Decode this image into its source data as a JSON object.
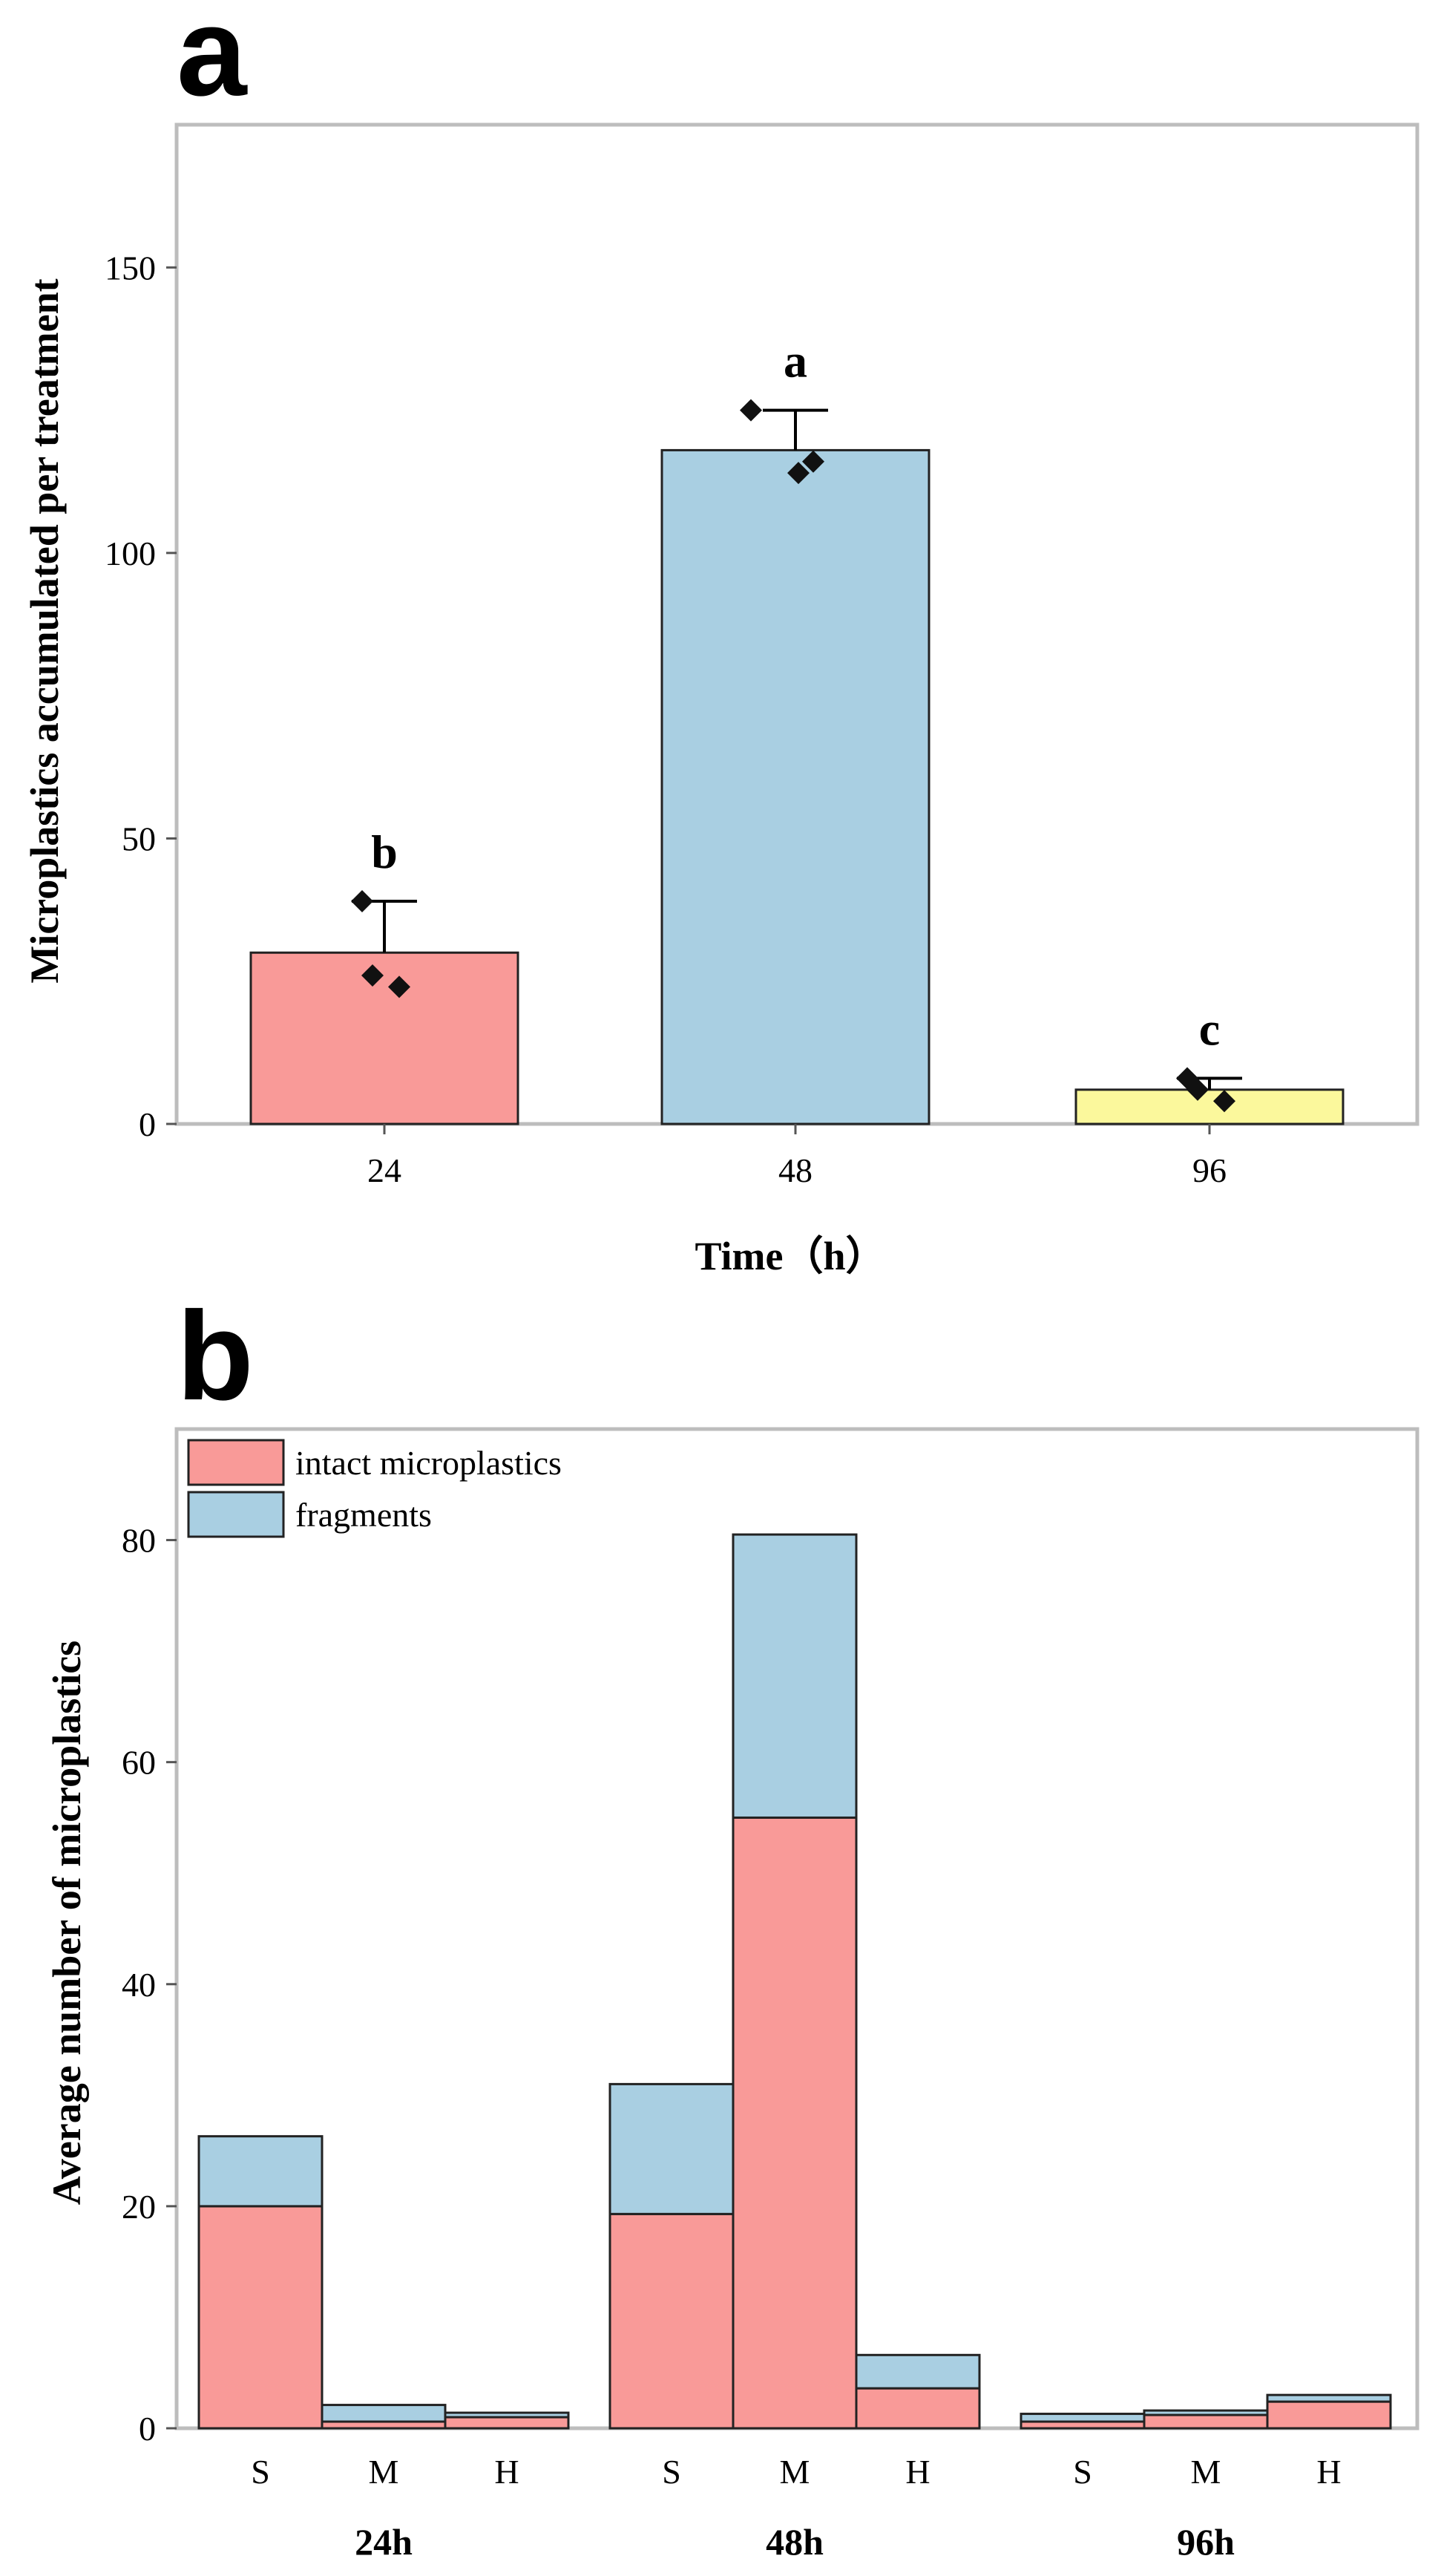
{
  "chart_data": [
    {
      "panel": "a",
      "type": "bar",
      "categories": [
        "24",
        "48",
        "96"
      ],
      "values": [
        30,
        118,
        6
      ],
      "error_upper": [
        39,
        125,
        8
      ],
      "points": [
        [
          39,
          26,
          24
        ],
        [
          125,
          114,
          116
        ],
        [
          8,
          6,
          4
        ]
      ],
      "significance": [
        "b",
        "a",
        "c"
      ],
      "colors": [
        "#f99a98",
        "#a9cfe2",
        "#fbf89c"
      ],
      "xlabel": "Time（h）",
      "ylabel": "Microplastics accumulated per treatment",
      "ylim": [
        0,
        175
      ],
      "yticks": [
        0,
        50,
        100,
        150
      ]
    },
    {
      "panel": "b",
      "type": "bar",
      "stacked": true,
      "groups": [
        "24h",
        "48h",
        "96h"
      ],
      "categories": [
        "S",
        "M",
        "H",
        "S",
        "M",
        "H",
        "S",
        "M",
        "H"
      ],
      "series": [
        {
          "name": "intact microplastics",
          "color": "#f99a98",
          "values": [
            20,
            0.6,
            1,
            19.3,
            55,
            3.6,
            0.6,
            1.2,
            2.4
          ]
        },
        {
          "name": "fragments",
          "color": "#a9cfe2",
          "values": [
            6.3,
            1.5,
            0.4,
            11.7,
            25.5,
            3,
            0.7,
            0.4,
            0.6
          ]
        }
      ],
      "xlabel": "",
      "ylabel": "Average number of microplastics",
      "ylim": [
        0,
        90
      ],
      "yticks": [
        0,
        20,
        40,
        60,
        80
      ],
      "legend_position": "top-left"
    }
  ]
}
